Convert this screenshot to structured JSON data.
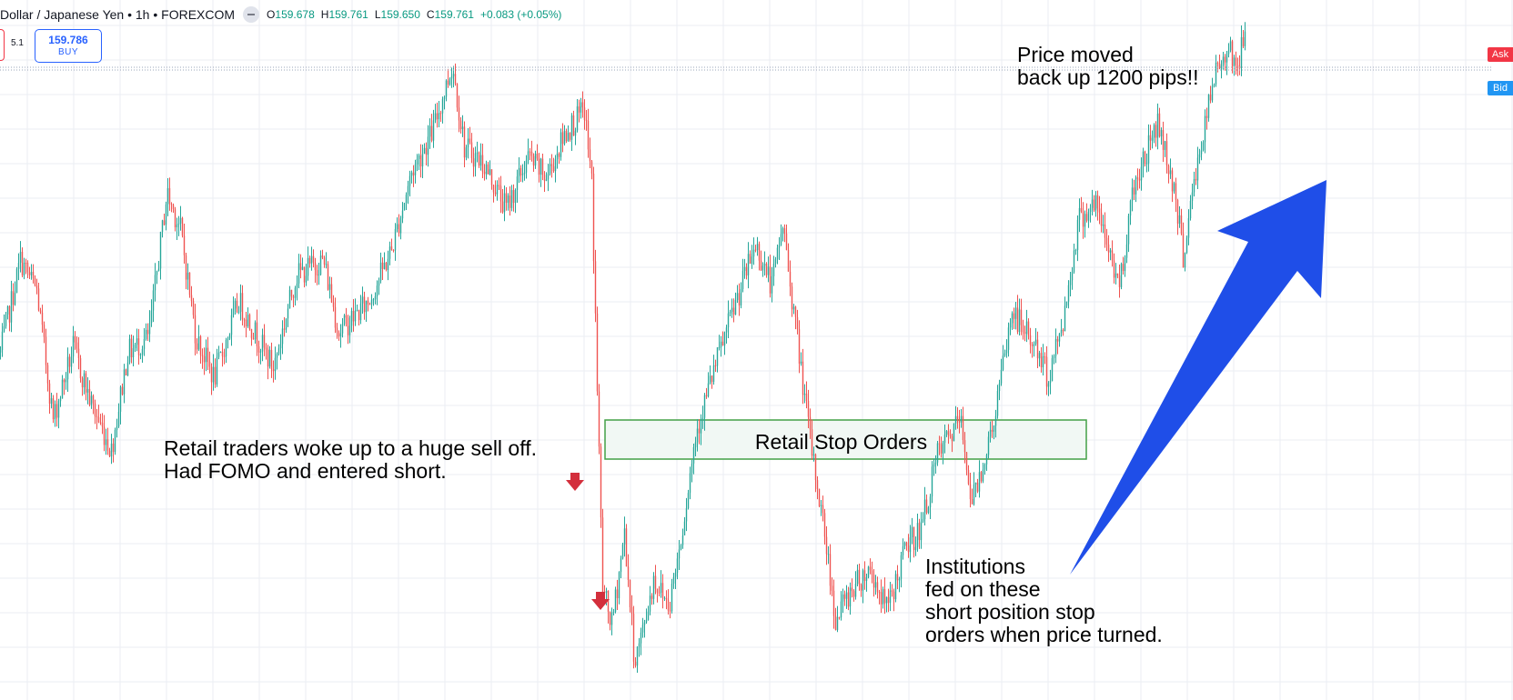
{
  "header": {
    "symbol": "Dollar / Japanese Yen • 1h • FOREXCOM",
    "open_label": "O",
    "open": "159.678",
    "high_label": "H",
    "high": "159.761",
    "low_label": "L",
    "low": "159.650",
    "close_label": "C",
    "close": "159.761",
    "change": "+0.083 (+0.05%)"
  },
  "trade": {
    "spread": "5.1",
    "buy_price": "159.786",
    "buy_label": "BUY"
  },
  "tags": {
    "ask": "Ask",
    "bid": "Bid"
  },
  "annotations": {
    "top_right": "Price moved\nback up 1200 pips!!",
    "retail_note": "Retail traders woke up to a huge sell off.\nHad FOMO and entered short.",
    "zone_label": "Retail Stop Orders",
    "institutions_note": "Institutions\nfed on these\nshort position stop\norders when price turned."
  },
  "colors": {
    "up": "#26a69a",
    "down": "#ef5350",
    "arrow": "#1f4ee8",
    "zone_border": "#43a047",
    "zone_fill": "#f1f8f4",
    "marker": "#d32f3c"
  },
  "chart_data": {
    "type": "candlestick",
    "symbol": "USDJPY",
    "timeframe": "1h",
    "last_close": 159.761,
    "ask": 159.786,
    "ylim": [
      147.1,
      160.0
    ],
    "path": [
      [
        0,
        153.5
      ],
      [
        22,
        155.3
      ],
      [
        40,
        154.7
      ],
      [
        58,
        152.2
      ],
      [
        80,
        153.6
      ],
      [
        100,
        152.5
      ],
      [
        122,
        151.6
      ],
      [
        140,
        153.5
      ],
      [
        163,
        153.8
      ],
      [
        183,
        156.6
      ],
      [
        198,
        155.9
      ],
      [
        215,
        153.8
      ],
      [
        235,
        153.0
      ],
      [
        262,
        154.5
      ],
      [
        300,
        153.2
      ],
      [
        325,
        155.0
      ],
      [
        355,
        155.3
      ],
      [
        372,
        153.9
      ],
      [
        405,
        154.5
      ],
      [
        430,
        155.5
      ],
      [
        452,
        157.0
      ],
      [
        475,
        157.8
      ],
      [
        497,
        159.1
      ],
      [
        510,
        157.5
      ],
      [
        530,
        157.2
      ],
      [
        556,
        156.3
      ],
      [
        580,
        157.3
      ],
      [
        600,
        156.9
      ],
      [
        622,
        157.8
      ],
      [
        642,
        158.2
      ],
      [
        650,
        156.8
      ],
      [
        655,
        153.5
      ],
      [
        662,
        148.9
      ],
      [
        672,
        148.2
      ],
      [
        686,
        150.0
      ],
      [
        697,
        147.5
      ],
      [
        705,
        148.0
      ],
      [
        718,
        149.1
      ],
      [
        735,
        148.6
      ],
      [
        748,
        149.9
      ],
      [
        765,
        152.0
      ],
      [
        785,
        153.2
      ],
      [
        805,
        154.3
      ],
      [
        830,
        155.6
      ],
      [
        848,
        154.8
      ],
      [
        860,
        156.0
      ],
      [
        872,
        154.3
      ],
      [
        890,
        151.8
      ],
      [
        906,
        150.0
      ],
      [
        918,
        148.3
      ],
      [
        935,
        148.9
      ],
      [
        955,
        149.3
      ],
      [
        975,
        148.5
      ],
      [
        995,
        149.7
      ],
      [
        1012,
        150.1
      ],
      [
        1030,
        151.5
      ],
      [
        1055,
        152.2
      ],
      [
        1068,
        150.6
      ],
      [
        1090,
        152.0
      ],
      [
        1112,
        154.3
      ],
      [
        1135,
        153.7
      ],
      [
        1152,
        153.0
      ],
      [
        1170,
        154.3
      ],
      [
        1185,
        156.1
      ],
      [
        1203,
        156.4
      ],
      [
        1220,
        155.4
      ],
      [
        1230,
        154.8
      ],
      [
        1245,
        156.7
      ],
      [
        1272,
        158.0
      ],
      [
        1290,
        156.7
      ],
      [
        1300,
        155.4
      ],
      [
        1315,
        157.1
      ],
      [
        1335,
        158.9
      ],
      [
        1350,
        159.5
      ],
      [
        1360,
        159.0
      ],
      [
        1368,
        159.761
      ]
    ],
    "zone": {
      "label": "Retail Stop Orders",
      "low": 150.75,
      "high": 151.55,
      "x_from": 665,
      "x_to": 1194
    },
    "markers": [
      {
        "label": "sell-entry",
        "x": 632
      },
      {
        "label": "sell-entry",
        "x": 660
      }
    ]
  }
}
